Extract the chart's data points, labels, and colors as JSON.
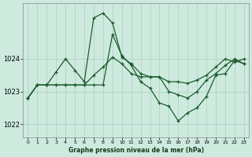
{
  "title": "",
  "xlabel": "Graphe pression niveau de la mer (hPa)",
  "background_color": "#ceeadf",
  "grid_color": "#aacfbf",
  "line_color": "#1a5c2a",
  "ylim": [
    1021.6,
    1025.7
  ],
  "xlim": [
    -0.5,
    23.5
  ],
  "yticks": [
    1022,
    1023,
    1024
  ],
  "xticks": [
    0,
    1,
    2,
    3,
    4,
    5,
    6,
    7,
    8,
    9,
    10,
    11,
    12,
    13,
    14,
    15,
    16,
    17,
    18,
    19,
    20,
    21,
    22,
    23
  ],
  "series1_x": [
    0,
    1,
    2,
    3,
    4,
    5,
    6,
    7,
    8,
    9,
    10,
    11,
    12,
    13,
    14,
    15,
    16,
    17,
    18,
    19,
    20,
    21,
    22,
    23
  ],
  "series1_y": [
    1022.8,
    1023.2,
    1023.2,
    1023.6,
    1024.0,
    1023.65,
    1023.3,
    1025.25,
    1025.4,
    1025.1,
    1024.05,
    1023.85,
    1023.55,
    1023.45,
    1023.45,
    1023.3,
    1023.3,
    1023.25,
    1023.35,
    1023.5,
    1023.75,
    1024.0,
    1023.9,
    1024.0
  ],
  "series2_x": [
    0,
    1,
    2,
    3,
    4,
    5,
    6,
    7,
    8,
    9,
    10,
    11,
    12,
    13,
    14,
    15,
    16,
    17,
    18,
    19,
    20,
    21,
    22,
    23
  ],
  "series2_y": [
    1022.8,
    1023.2,
    1023.2,
    1023.2,
    1023.2,
    1023.2,
    1023.2,
    1023.5,
    1023.75,
    1024.05,
    1023.85,
    1023.55,
    1023.45,
    1023.45,
    1023.45,
    1023.0,
    1022.9,
    1022.8,
    1023.0,
    1023.35,
    1023.55,
    1023.8,
    1024.0,
    1023.85
  ],
  "series3_x": [
    0,
    1,
    2,
    3,
    4,
    5,
    6,
    7,
    8,
    9,
    10,
    11,
    12,
    13,
    14,
    15,
    16,
    17,
    18,
    19,
    20,
    21,
    22,
    23
  ],
  "series3_y": [
    1022.8,
    1023.2,
    1023.2,
    1023.2,
    1023.2,
    1023.2,
    1023.2,
    1023.2,
    1023.2,
    1024.75,
    1024.1,
    1023.8,
    1023.3,
    1023.1,
    1022.65,
    1022.55,
    1022.1,
    1022.35,
    1022.5,
    1022.85,
    1023.5,
    1023.55,
    1023.95,
    1023.85
  ]
}
